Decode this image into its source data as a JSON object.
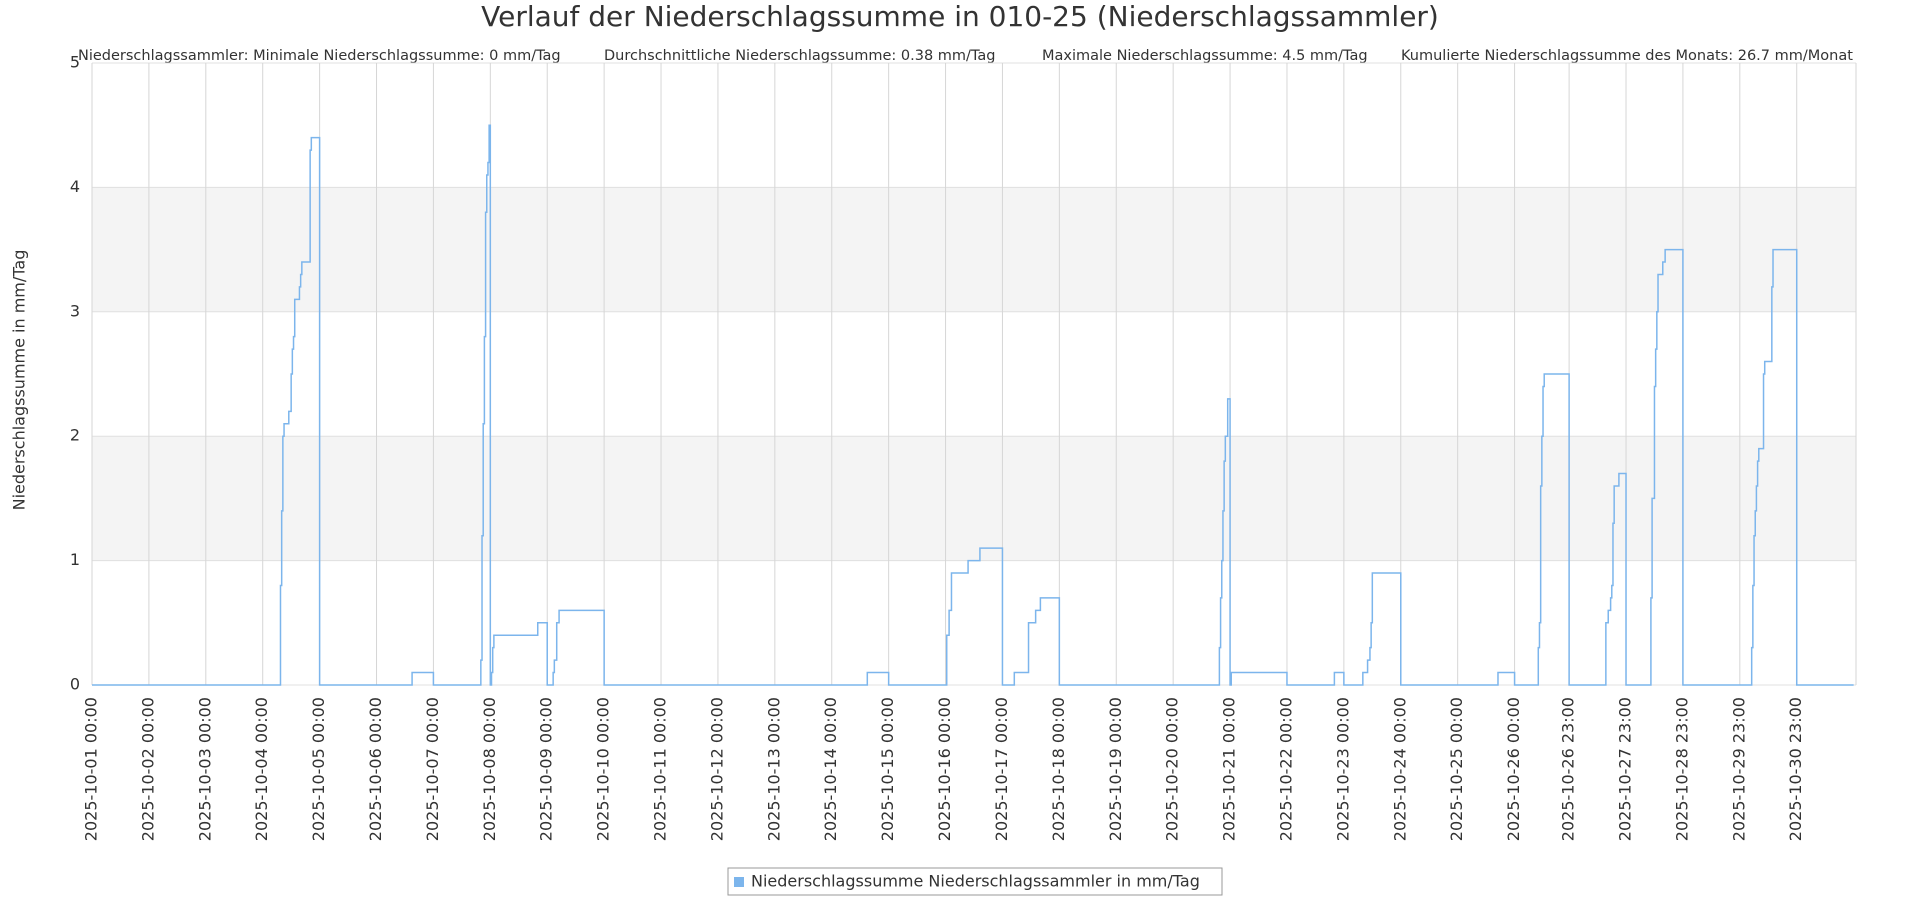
{
  "chart_data": {
    "type": "line",
    "step": true,
    "title": "Verlauf der Niederschlagssumme in 010-25 (Niederschlagssammler)",
    "annotations": [
      "Niederschlagssammler: Minimale Niederschlagssumme: 0 mm/Tag",
      "Durchschnittliche Niederschlagssumme: 0.38 mm/Tag",
      "Maximale Niederschlagssumme: 4.5 mm/Tag",
      "Kumulierte Niederschlagssumme des Monats: 26.7 mm/Monat"
    ],
    "ylabel": "Niederschlagssumme in mm/Tag",
    "ylim": [
      0,
      5
    ],
    "yticks": [
      0,
      1,
      2,
      3,
      4,
      5
    ],
    "xlim": [
      "2025-10-01 00:00",
      "2025-11-01 00:00"
    ],
    "xticks": [
      "2025-10-01 00:00",
      "2025-10-02 00:00",
      "2025-10-03 00:00",
      "2025-10-04 00:00",
      "2025-10-05 00:00",
      "2025-10-06 00:00",
      "2025-10-07 00:00",
      "2025-10-08 00:00",
      "2025-10-09 00:00",
      "2025-10-10 00:00",
      "2025-10-11 00:00",
      "2025-10-12 00:00",
      "2025-10-13 00:00",
      "2025-10-14 00:00",
      "2025-10-15 00:00",
      "2025-10-16 00:00",
      "2025-10-17 00:00",
      "2025-10-18 00:00",
      "2025-10-19 00:00",
      "2025-10-20 00:00",
      "2025-10-21 00:00",
      "2025-10-22 00:00",
      "2025-10-23 00:00",
      "2025-10-24 00:00",
      "2025-10-25 00:00",
      "2025-10-26 00:00",
      "2025-10-26 23:00",
      "2025-10-27 23:00",
      "2025-10-28 23:00",
      "2025-10-29 23:00",
      "2025-10-30 23:00"
    ],
    "grid": true,
    "alternate_band_color": "#f4f4f4",
    "legend": "bottom",
    "x": [
      "2025-10-01 00:00",
      "2025-10-04 07:30",
      "2025-10-04 08:00",
      "2025-10-04 08:30",
      "2025-10-04 09:00",
      "2025-10-04 11:00",
      "2025-10-04 12:00",
      "2025-10-04 12:30",
      "2025-10-04 13:00",
      "2025-10-04 13:30",
      "2025-10-04 15:30",
      "2025-10-04 16:00",
      "2025-10-04 16:30",
      "2025-10-04 20:00",
      "2025-10-04 20:30",
      "2025-10-05 00:00",
      "2025-10-06 15:00",
      "2025-10-07 00:00",
      "2025-10-07 20:00",
      "2025-10-07 20:30",
      "2025-10-07 21:00",
      "2025-10-07 21:30",
      "2025-10-07 22:00",
      "2025-10-07 22:30",
      "2025-10-07 23:00",
      "2025-10-07 23:30",
      "2025-10-08 00:00",
      "2025-10-08 00:30",
      "2025-10-08 01:00",
      "2025-10-08 01:30",
      "2025-10-08 20:00",
      "2025-10-09 00:00",
      "2025-10-09 02:30",
      "2025-10-09 03:00",
      "2025-10-09 04:00",
      "2025-10-09 05:00",
      "2025-10-10 00:00",
      "2025-10-14 15:00",
      "2025-10-15 00:00",
      "2025-10-16 00:30",
      "2025-10-16 01:30",
      "2025-10-16 02:30",
      "2025-10-16 09:30",
      "2025-10-16 14:30",
      "2025-10-17 00:00",
      "2025-10-17 05:00",
      "2025-10-17 11:00",
      "2025-10-17 14:00",
      "2025-10-17 16:00",
      "2025-10-18 00:00",
      "2025-10-20 19:30",
      "2025-10-20 20:00",
      "2025-10-20 20:30",
      "2025-10-20 21:00",
      "2025-10-20 21:30",
      "2025-10-20 22:00",
      "2025-10-20 23:00",
      "2025-10-21 00:00",
      "2025-10-21 00:30",
      "2025-10-22 00:00",
      "2025-10-22 20:00",
      "2025-10-23 00:00",
      "2025-10-23 08:00",
      "2025-10-23 10:00",
      "2025-10-23 11:00",
      "2025-10-23 11:30",
      "2025-10-23 12:00",
      "2025-10-24 00:00",
      "2025-10-25 17:00",
      "2025-10-26 00:00",
      "2025-10-26 10:00",
      "2025-10-26 10:30",
      "2025-10-26 11:00",
      "2025-10-26 11:30",
      "2025-10-26 12:00",
      "2025-10-26 12:30",
      "2025-10-26 23:00",
      "2025-10-27 14:30",
      "2025-10-27 15:30",
      "2025-10-27 16:30",
      "2025-10-27 17:00",
      "2025-10-27 17:30",
      "2025-10-27 18:00",
      "2025-10-27 20:00",
      "2025-10-27 23:00",
      "2025-10-28 09:30",
      "2025-10-28 10:00",
      "2025-10-28 11:00",
      "2025-10-28 11:30",
      "2025-10-28 12:00",
      "2025-10-28 12:30",
      "2025-10-28 14:30",
      "2025-10-28 15:30",
      "2025-10-28 23:00",
      "2025-10-30 04:00",
      "2025-10-30 04:30",
      "2025-10-30 05:00",
      "2025-10-30 05:30",
      "2025-10-30 06:00",
      "2025-10-30 06:30",
      "2025-10-30 07:00",
      "2025-10-30 09:00",
      "2025-10-30 09:30",
      "2025-10-30 12:30",
      "2025-10-30 13:00",
      "2025-10-30 23:00",
      "2025-10-31 23:00"
    ],
    "series": [
      {
        "name": "Niederschlagssumme Niederschlagssammler in mm/Tag",
        "color": "#7cb5ec",
        "values": [
          0,
          0.8,
          1.4,
          2.0,
          2.1,
          2.2,
          2.5,
          2.7,
          2.8,
          3.1,
          3.2,
          3.3,
          3.4,
          4.3,
          4.4,
          0,
          0.1,
          0,
          0.2,
          1.2,
          2.1,
          2.8,
          3.8,
          4.1,
          4.2,
          4.5,
          0,
          0.1,
          0.3,
          0.4,
          0.5,
          0,
          0.1,
          0.2,
          0.5,
          0.6,
          0,
          0.1,
          0,
          0.4,
          0.6,
          0.9,
          1.0,
          1.1,
          0,
          0.1,
          0.5,
          0.6,
          0.7,
          0,
          0.3,
          0.7,
          1.0,
          1.4,
          1.8,
          2.0,
          2.3,
          0,
          0.1,
          0,
          0.1,
          0,
          0.1,
          0.2,
          0.3,
          0.5,
          0.9,
          0,
          0.1,
          0,
          0.3,
          0.5,
          1.6,
          2.0,
          2.4,
          2.5,
          0,
          0.5,
          0.6,
          0.7,
          0.8,
          1.3,
          1.6,
          1.7,
          0,
          0.7,
          1.5,
          2.4,
          2.7,
          3.0,
          3.3,
          3.4,
          3.5,
          0,
          0.3,
          0.8,
          1.2,
          1.4,
          1.6,
          1.8,
          1.9,
          2.5,
          2.6,
          3.2,
          3.5,
          0,
          0
        ]
      }
    ]
  }
}
